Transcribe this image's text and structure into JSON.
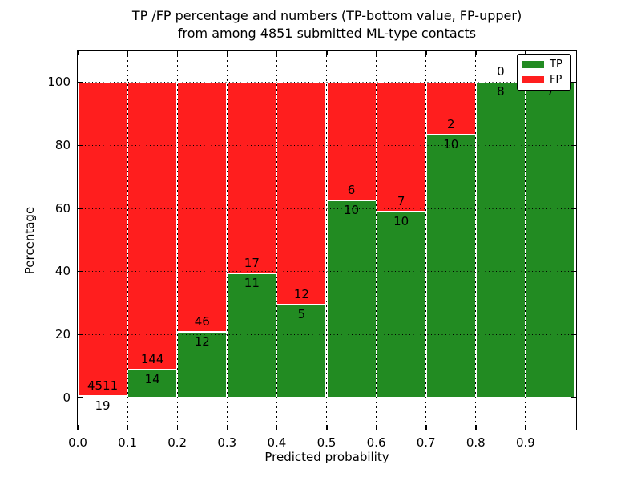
{
  "chart_data": {
    "type": "bar",
    "stacked": true,
    "normalized": "percent",
    "title": "TP /FP percentage and numbers (TP-bottom value, FP-upper)\nfrom among 4851 submitted ML-type contacts",
    "title_line1": "TP /FP percentage and numbers (TP-bottom value, FP-upper)",
    "title_line2": "from among 4851 submitted ML-type contacts",
    "xlabel": "Predicted probability",
    "ylabel": "Percentage",
    "x_ticks": [
      "0.0",
      "0.1",
      "0.2",
      "0.3",
      "0.4",
      "0.5",
      "0.6",
      "0.7",
      "0.8",
      "0.9"
    ],
    "y_ticks": [
      0,
      20,
      40,
      60,
      80,
      100
    ],
    "xlim": [
      0.0,
      1.0
    ],
    "ylim": [
      -10,
      110
    ],
    "bin_width": 0.1,
    "bins": [
      "0.0-0.1",
      "0.1-0.2",
      "0.2-0.3",
      "0.3-0.4",
      "0.4-0.5",
      "0.5-0.6",
      "0.6-0.7",
      "0.7-0.8",
      "0.8-0.9",
      "0.9-1.0"
    ],
    "series": [
      {
        "name": "TP",
        "color": "#228B22",
        "values": [
          19,
          14,
          12,
          11,
          5,
          10,
          10,
          10,
          8,
          7
        ]
      },
      {
        "name": "FP",
        "color": "#FF1E1E",
        "values": [
          4511,
          144,
          46,
          17,
          12,
          6,
          7,
          2,
          0,
          0
        ]
      }
    ],
    "tp_percent": [
      0.42,
      8.86,
      20.69,
      39.29,
      29.41,
      62.5,
      58.82,
      83.33,
      100.0,
      100.0
    ],
    "total_submitted": 4851,
    "legend": {
      "position": "upper right",
      "entries": [
        "TP",
        "FP"
      ]
    },
    "grid": true,
    "grid_style": "dotted",
    "background_color": "#ffffff",
    "axis_color": "#000000"
  }
}
